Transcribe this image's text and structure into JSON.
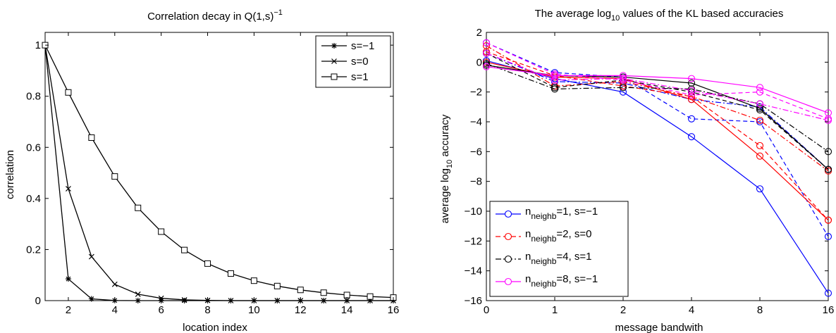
{
  "chart_data": [
    {
      "type": "line",
      "title": "Correlation decay in Q(1,s)",
      "title_sup": "−1",
      "xlabel": "location index",
      "ylabel": "correlation",
      "xlim": [
        1,
        16
      ],
      "ylim": [
        0,
        1.05
      ],
      "xticks": [
        2,
        4,
        6,
        8,
        10,
        12,
        14,
        16
      ],
      "xtick_labels": [
        "2",
        "4",
        "6",
        "8",
        "10",
        "12",
        "14",
        "16"
      ],
      "yticks": [
        0,
        0.2,
        0.4,
        0.6,
        0.8,
        1
      ],
      "ytick_labels": [
        "0",
        "0.2",
        "0.4",
        "0.6",
        "0.8",
        "1"
      ],
      "legend_position": "top-right",
      "series": [
        {
          "name": "s=−1",
          "marker": "star",
          "color": "#000000",
          "x": [
            1,
            2,
            3,
            4,
            5,
            6,
            7,
            8,
            9,
            10,
            11,
            12,
            13,
            14,
            15,
            16
          ],
          "y": [
            1,
            0.085,
            0.007,
            0.0006,
            0,
            0,
            0,
            0,
            0,
            0,
            0,
            0,
            0,
            0,
            0,
            0
          ]
        },
        {
          "name": "s=0",
          "marker": "x",
          "color": "#000000",
          "x": [
            1,
            2,
            3,
            4,
            5,
            6,
            7,
            8,
            9,
            10,
            11,
            12,
            13,
            14,
            15,
            16
          ],
          "y": [
            1,
            0.438,
            0.172,
            0.064,
            0.025,
            0.009,
            0.003,
            0.001,
            0,
            0,
            0,
            0,
            0,
            0,
            0,
            0
          ]
        },
        {
          "name": "s=1",
          "marker": "square",
          "color": "#000000",
          "x": [
            1,
            2,
            3,
            4,
            5,
            6,
            7,
            8,
            9,
            10,
            11,
            12,
            13,
            14,
            15,
            16
          ],
          "y": [
            1,
            0.815,
            0.638,
            0.486,
            0.363,
            0.27,
            0.198,
            0.145,
            0.106,
            0.078,
            0.057,
            0.042,
            0.031,
            0.022,
            0.016,
            0.012
          ]
        }
      ]
    },
    {
      "type": "line",
      "title_prefix": "The average log",
      "title_sub": "10",
      "title_suffix": " values of the KL based accuracies",
      "xlabel": "message bandwith",
      "ylabel_prefix": "average log",
      "ylabel_sub": "10",
      "ylabel_suffix": " accuracy",
      "x_categories": [
        "0",
        "1",
        "2",
        "4",
        "8",
        "16"
      ],
      "ylim": [
        -16,
        2
      ],
      "yticks": [
        -16,
        -14,
        -12,
        -10,
        -8,
        -6,
        -4,
        -2,
        0,
        2
      ],
      "ytick_labels": [
        "−16",
        "−14",
        "−12",
        "−10",
        "−8",
        "−6",
        "−4",
        "−2",
        "0",
        "2"
      ],
      "legend_position": "bottom-left",
      "legend": [
        {
          "prefix": "n",
          "sub": "neighb",
          "suffix": "=1, s=−1",
          "color": "#0000ff",
          "dash": ""
        },
        {
          "prefix": "n",
          "sub": "neighb",
          "suffix": "=2, s=0",
          "color": "#ff0000",
          "dash": "7,4"
        },
        {
          "prefix": "n",
          "sub": "neighb",
          "suffix": "=4, s=1",
          "color": "#000000",
          "dash": "8,3,2,3"
        },
        {
          "prefix": "n",
          "sub": "neighb",
          "suffix": "=8, s=−1",
          "color": "#ff00ff",
          "dash": ""
        }
      ],
      "series": [
        {
          "color": "#0000ff",
          "dash": "",
          "values": [
            0.1,
            -1.1,
            -2.0,
            -5.0,
            -8.5,
            -15.5
          ]
        },
        {
          "color": "#0000ff",
          "dash": "6,4",
          "values": [
            1.3,
            -0.7,
            -1.0,
            -3.8,
            -4.0,
            -11.7
          ]
        },
        {
          "color": "#0000ff",
          "dash": "8,3,2,3",
          "values": [
            0.6,
            -1.3,
            -1.4,
            -2.5,
            -3.0,
            -7.2
          ]
        },
        {
          "color": "#ff0000",
          "dash": "",
          "values": [
            0.0,
            -1.0,
            -1.1,
            -2.5,
            -6.3,
            -10.6
          ]
        },
        {
          "color": "#ff0000",
          "dash": "6,4",
          "values": [
            0.7,
            -0.9,
            -1.6,
            -2.3,
            -5.6,
            -10.6
          ]
        },
        {
          "color": "#ff0000",
          "dash": "8,3,2,3",
          "values": [
            1.1,
            -1.6,
            -1.3,
            -2.3,
            -3.9,
            -7.3
          ]
        },
        {
          "color": "#000000",
          "dash": "",
          "values": [
            -0.2,
            -0.9,
            -1.0,
            -1.4,
            -3.1,
            -7.2
          ]
        },
        {
          "color": "#000000",
          "dash": "6,4",
          "values": [
            0.6,
            -1.7,
            -1.2,
            -2.0,
            -3.2,
            -7.2
          ]
        },
        {
          "color": "#000000",
          "dash": "8,3,2,3",
          "values": [
            -0.1,
            -1.8,
            -1.7,
            -1.8,
            -2.8,
            -6.0
          ]
        },
        {
          "color": "#ff00ff",
          "dash": "",
          "values": [
            -0.3,
            -0.9,
            -0.9,
            -1.1,
            -1.7,
            -3.4
          ]
        },
        {
          "color": "#ff00ff",
          "dash": "6,4",
          "values": [
            1.3,
            -0.8,
            -1.2,
            -2.2,
            -2.0,
            -3.8
          ]
        },
        {
          "color": "#ff00ff",
          "dash": "8,3,2,3",
          "values": [
            0.6,
            -1.2,
            -1.1,
            -1.9,
            -2.8,
            -3.9
          ]
        }
      ]
    }
  ]
}
